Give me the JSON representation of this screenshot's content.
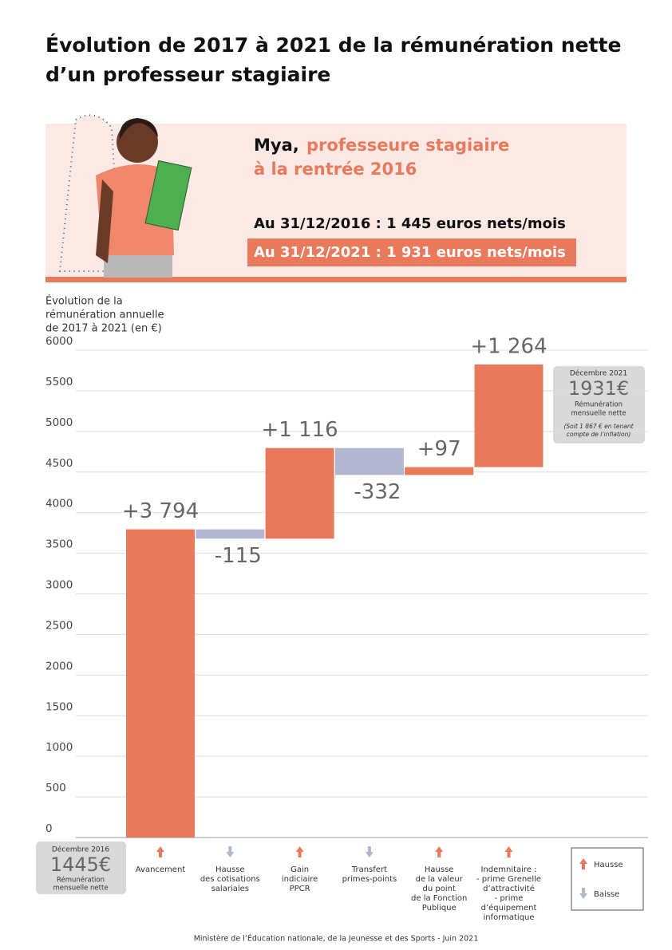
{
  "header": {
    "title": [
      "Évolution de 2017 à 2021 de la rémunération nette",
      "d’un professeur stagiaire"
    ]
  },
  "card": {
    "name": "Mya,",
    "role": [
      "professeure stagiaire",
      "à la rentrée 2016"
    ],
    "before": "Au 31/12/2016 : 1 445 euros nets/mois",
    "after": "Au 31/12/2021 : 1 931 euros nets/mois"
  },
  "start_box": {
    "date": "Décembre 2016",
    "amount": "1445€",
    "caption": [
      "Rémunération",
      "mensuelle nette"
    ]
  },
  "end_box": {
    "date": "Décembre 2021",
    "amount": "1931€",
    "caption": [
      "Rémunération",
      "mensuelle nette"
    ],
    "note": [
      "(Soit 1 867 € en tenant",
      "compte de l’inflation)"
    ]
  },
  "chart_data": {
    "type": "waterfall",
    "y_label": [
      "Évolution de la",
      "rémunération annuelle",
      "de 2017 à 2021 (en €)"
    ],
    "categories": [
      [
        "Avancement"
      ],
      [
        "Hausse",
        "des cotisations",
        "salariales"
      ],
      [
        "Gain",
        "indiciaire",
        "PPCR"
      ],
      [
        "Transfert",
        "primes-points"
      ],
      [
        "Hausse",
        "de la valeur",
        "du point",
        "de la Fonction",
        "Publique"
      ],
      [
        "Indemnitaire :",
        "- prime Grenelle",
        "d’attractivité",
        "- prime",
        "d’équipement",
        "informatique"
      ]
    ],
    "values": [
      3794,
      -115,
      1116,
      -332,
      97,
      1264
    ],
    "value_labels": [
      "+3 794",
      "-115",
      "+1 116",
      "-332",
      "+97",
      "+1 264"
    ],
    "legend": [
      {
        "name": "Hausse",
        "color": "#e8795a"
      },
      {
        "name": "Baisse",
        "color": "#b3b6cf"
      }
    ],
    "ylim": [
      0,
      6000
    ],
    "yticks": [
      0,
      500,
      1000,
      1500,
      2000,
      2500,
      3000,
      3500,
      4000,
      4500,
      5000,
      5500,
      6000
    ],
    "grid": true
  },
  "footer": "Ministère de l’Éducation nationale, de la Jeunesse et des Sports - Juin 2021"
}
